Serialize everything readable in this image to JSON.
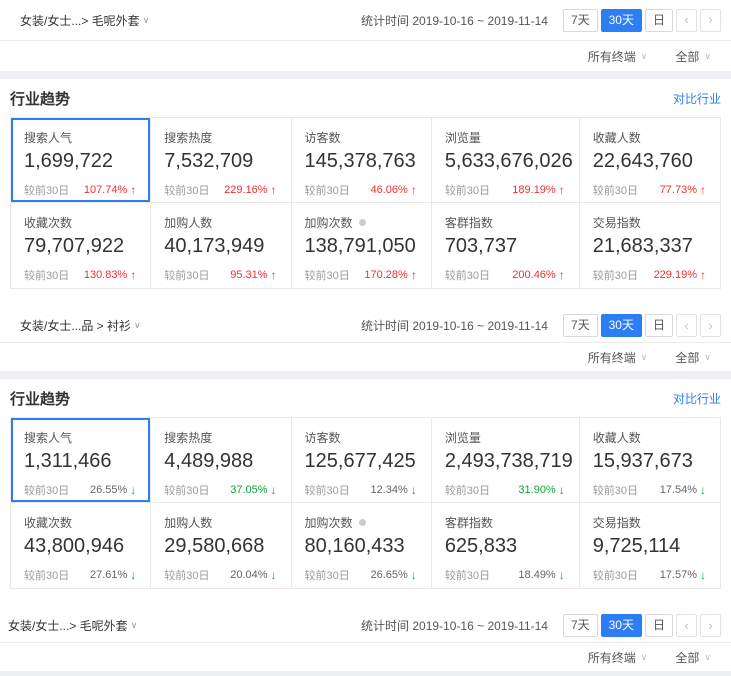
{
  "colors": {
    "accent": "#2d7df4",
    "up_red": "#f23030",
    "down_green": "#09a63a",
    "band_gray": "#eef0f3"
  },
  "icons": {
    "chevron_down": "∨",
    "chevron_left": "‹",
    "chevron_right": "›",
    "arrow_up": "↑",
    "arrow_down": "↓"
  },
  "time": {
    "label": "统计时间",
    "range": "2019-10-16 ~ 2019-11-14"
  },
  "range_buttons": [
    {
      "label": "7天",
      "active": false
    },
    {
      "label": "30天",
      "active": true
    },
    {
      "label": "日",
      "active": false
    }
  ],
  "filters": {
    "terminal": "所有终端",
    "scope": "全部"
  },
  "panel": {
    "title": "行业趋势",
    "compare_link": "对比行业"
  },
  "compare_label": "较前30日",
  "sections": [
    {
      "breadcrumb": "女装/女士...> 毛呢外套",
      "has_panel": true,
      "metrics": [
        {
          "label": "搜索人气",
          "value": "1,699,722",
          "change": "107.74%",
          "dir": "up",
          "tone": "red",
          "info": false,
          "selected": true
        },
        {
          "label": "搜索热度",
          "value": "7,532,709",
          "change": "229.16%",
          "dir": "up",
          "tone": "red",
          "info": false,
          "selected": false
        },
        {
          "label": "访客数",
          "value": "145,378,763",
          "change": "46.06%",
          "dir": "up",
          "tone": "red",
          "info": false,
          "selected": false
        },
        {
          "label": "浏览量",
          "value": "5,633,676,026",
          "change": "189.19%",
          "dir": "up",
          "tone": "red",
          "info": false,
          "selected": false
        },
        {
          "label": "收藏人数",
          "value": "22,643,760",
          "change": "77.73%",
          "dir": "up",
          "tone": "red",
          "info": false,
          "selected": false
        },
        {
          "label": "收藏次数",
          "value": "79,707,922",
          "change": "130.83%",
          "dir": "up",
          "tone": "red",
          "info": false,
          "selected": false
        },
        {
          "label": "加购人数",
          "value": "40,173,949",
          "change": "95.31%",
          "dir": "up",
          "tone": "red",
          "info": false,
          "selected": false
        },
        {
          "label": "加购次数",
          "value": "138,791,050",
          "change": "170.28%",
          "dir": "up",
          "tone": "red",
          "info": true,
          "selected": false
        },
        {
          "label": "客群指数",
          "value": "703,737",
          "change": "200.46%",
          "dir": "up",
          "tone": "red",
          "info": false,
          "selected": false
        },
        {
          "label": "交易指数",
          "value": "21,683,337",
          "change": "229.19%",
          "dir": "up",
          "tone": "red",
          "info": false,
          "selected": false
        }
      ]
    },
    {
      "breadcrumb": "女装/女士...品 > 衬衫",
      "has_panel": true,
      "metrics": [
        {
          "label": "搜索人气",
          "value": "1,311,466",
          "change": "26.55%",
          "dir": "down",
          "tone": "gray",
          "info": false,
          "selected": true
        },
        {
          "label": "搜索热度",
          "value": "4,489,988",
          "change": "37.05%",
          "dir": "down",
          "tone": "green",
          "info": false,
          "selected": false
        },
        {
          "label": "访客数",
          "value": "125,677,425",
          "change": "12.34%",
          "dir": "down",
          "tone": "gray",
          "info": false,
          "selected": false
        },
        {
          "label": "浏览量",
          "value": "2,493,738,719",
          "change": "31.90%",
          "dir": "down",
          "tone": "green",
          "info": false,
          "selected": false
        },
        {
          "label": "收藏人数",
          "value": "15,937,673",
          "change": "17.54%",
          "dir": "down",
          "tone": "gray",
          "info": false,
          "selected": false
        },
        {
          "label": "收藏次数",
          "value": "43,800,946",
          "change": "27.61%",
          "dir": "down",
          "tone": "gray",
          "info": false,
          "selected": false
        },
        {
          "label": "加购人数",
          "value": "29,580,668",
          "change": "20.04%",
          "dir": "down",
          "tone": "gray",
          "info": false,
          "selected": false
        },
        {
          "label": "加购次数",
          "value": "80,160,433",
          "change": "26.65%",
          "dir": "down",
          "tone": "gray",
          "info": true,
          "selected": false
        },
        {
          "label": "客群指数",
          "value": "625,833",
          "change": "18.49%",
          "dir": "down",
          "tone": "gray",
          "info": false,
          "selected": false
        },
        {
          "label": "交易指数",
          "value": "9,725,114",
          "change": "17.57%",
          "dir": "down",
          "tone": "gray",
          "info": false,
          "selected": false
        }
      ]
    },
    {
      "breadcrumb": "女装/女士...> 毛呢外套",
      "has_panel": false
    }
  ]
}
